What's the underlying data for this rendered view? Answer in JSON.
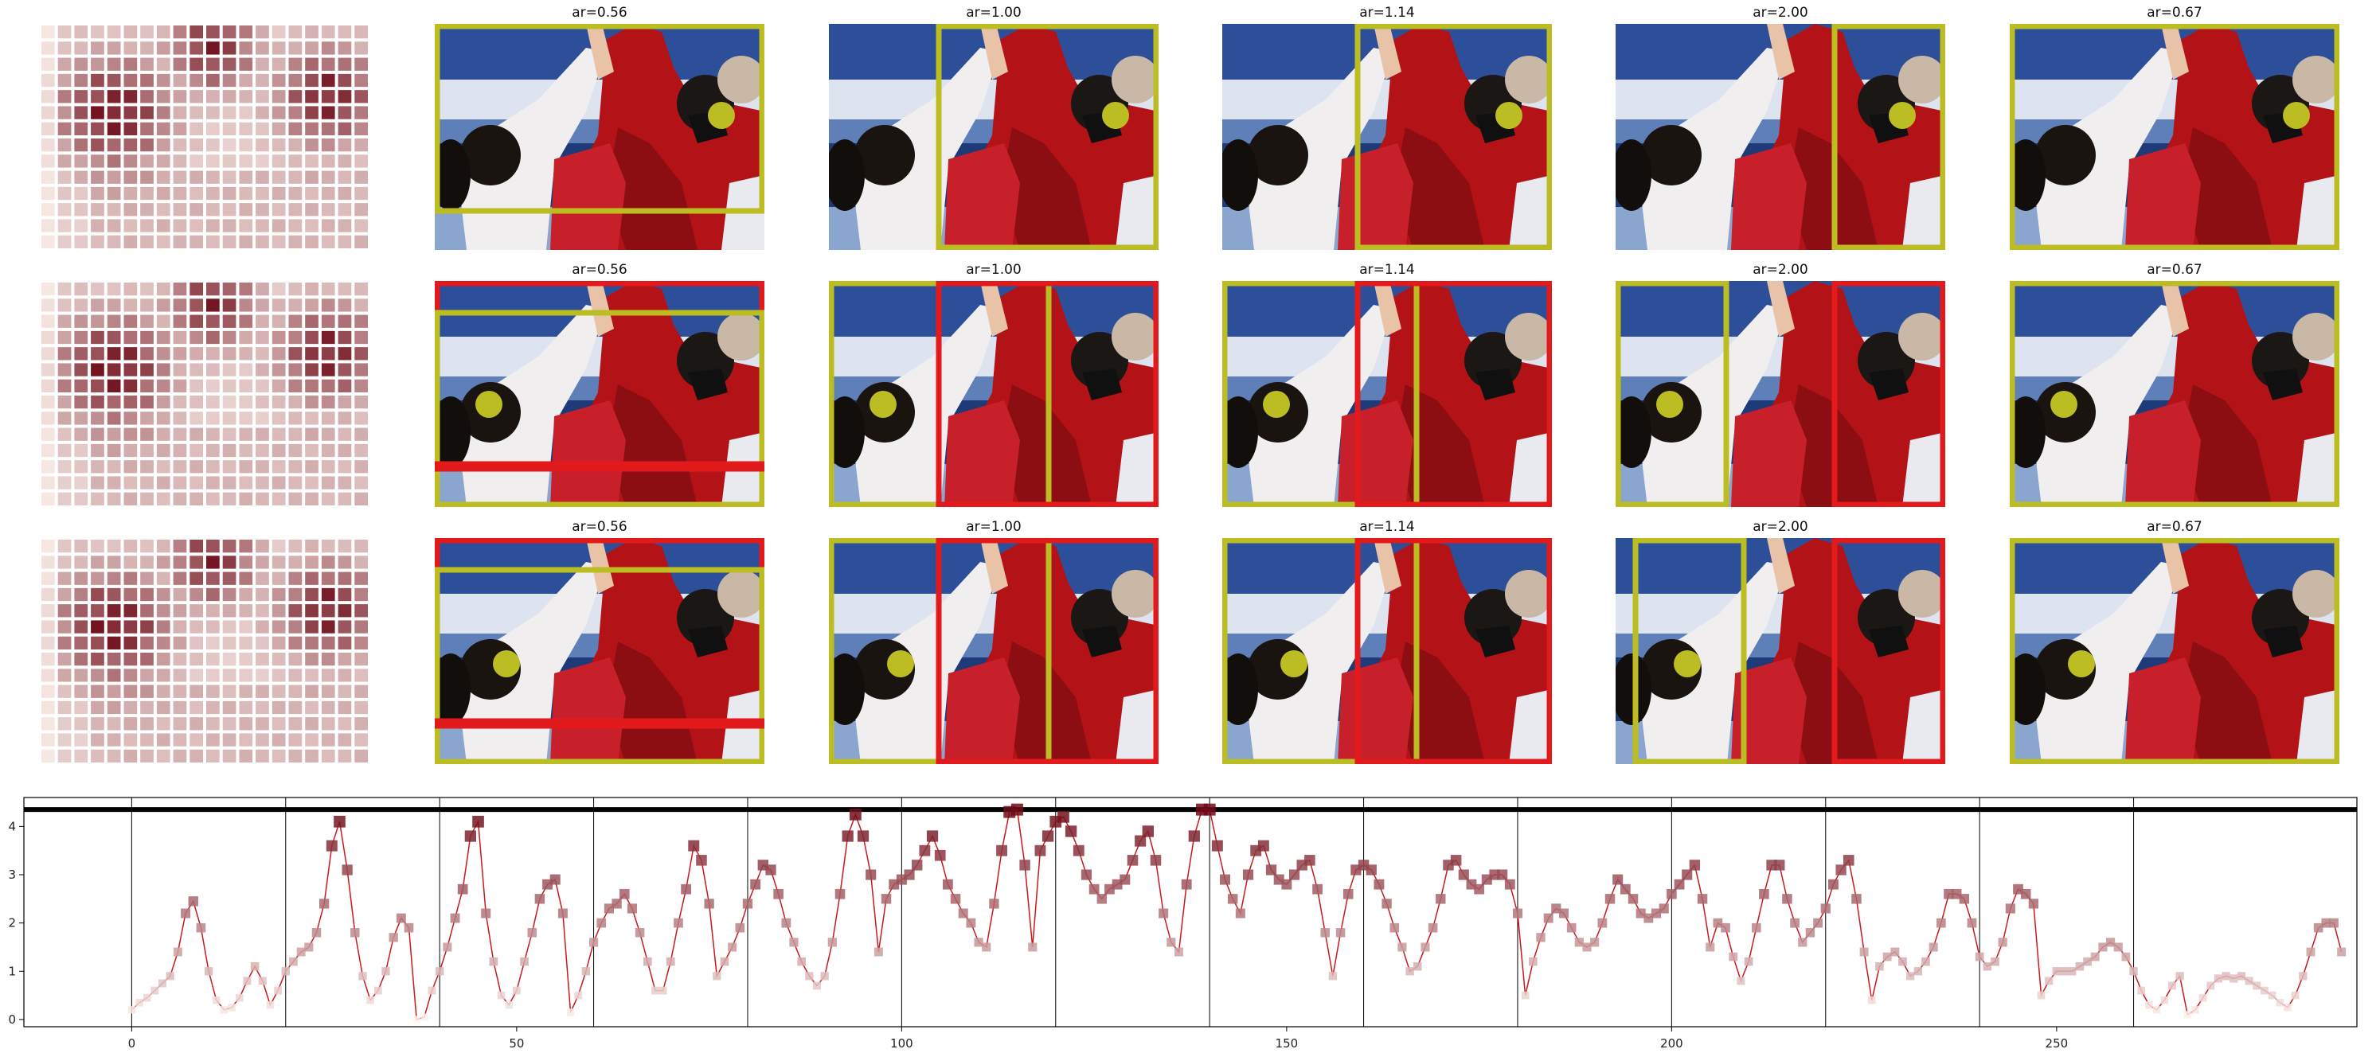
{
  "grid": {
    "rows": [
      {
        "panels": [
          {
            "title": "ar=0.56"
          },
          {
            "title": "ar=1.00"
          },
          {
            "title": "ar=1.14"
          },
          {
            "title": "ar=2.00"
          },
          {
            "title": "ar=0.67"
          }
        ]
      },
      {
        "panels": [
          {
            "title": "ar=0.56"
          },
          {
            "title": "ar=1.00"
          },
          {
            "title": "ar=1.14"
          },
          {
            "title": "ar=2.00"
          },
          {
            "title": "ar=0.67"
          }
        ]
      },
      {
        "panels": [
          {
            "title": "ar=0.56"
          },
          {
            "title": "ar=1.00"
          },
          {
            "title": "ar=1.14"
          },
          {
            "title": "ar=2.00"
          },
          {
            "title": "ar=0.67"
          }
        ]
      }
    ]
  },
  "colors": {
    "crop_box": "#bcbd22",
    "alt_box": "#e31a1c",
    "line": "#cb181d",
    "grid_line": "#000000"
  },
  "chart_data": {
    "type": "line",
    "title": "",
    "xlabel": "",
    "ylabel": "",
    "xlim": [
      -14,
      289
    ],
    "ylim": [
      -0.15,
      4.6
    ],
    "xticks": [
      0,
      50,
      100,
      150,
      200,
      250
    ],
    "yticks": [
      0,
      1,
      2,
      3,
      4
    ],
    "hline": 4.35,
    "vlines": [
      0,
      20,
      40,
      60,
      80,
      100,
      120,
      140,
      160,
      180,
      200,
      220,
      240,
      260
    ],
    "series": [
      {
        "values": [
          0.2,
          0.35,
          0.45,
          0.6,
          0.75,
          0.9,
          1.4,
          2.2,
          2.45,
          1.9,
          1.0,
          0.4,
          0.2,
          0.25,
          0.45,
          0.8,
          1.1,
          0.8,
          0.3,
          0.6,
          1.0,
          1.2,
          1.4,
          1.5,
          1.8,
          2.4,
          3.6,
          4.1,
          3.1,
          1.8,
          0.9,
          0.4,
          0.6,
          1.0,
          1.7,
          2.1,
          1.9,
          0.0,
          0.05,
          0.6,
          1.0,
          1.5,
          2.1,
          2.7,
          3.8,
          4.1,
          2.2,
          1.2,
          0.5,
          0.3,
          0.6,
          1.2,
          1.8,
          2.5,
          2.8,
          2.9,
          2.2,
          0.15,
          0.5,
          1.0,
          1.6,
          2.0,
          2.3,
          2.4,
          2.6,
          2.3,
          1.8,
          1.2,
          0.6,
          0.6,
          1.2,
          2.0,
          2.7,
          3.6,
          3.3,
          2.4,
          0.9,
          1.2,
          1.5,
          1.9,
          2.4,
          2.8,
          3.2,
          3.1,
          2.6,
          2.0,
          1.6,
          1.2,
          0.9,
          0.7,
          0.9,
          1.6,
          2.6,
          3.8,
          4.25,
          3.8,
          3.0,
          1.4,
          2.5,
          2.8,
          2.9,
          3.0,
          3.2,
          3.5,
          3.8,
          3.4,
          2.8,
          2.5,
          2.2,
          2.0,
          1.6,
          1.5,
          2.4,
          3.5,
          4.3,
          4.35,
          3.2,
          1.5,
          3.5,
          3.8,
          4.1,
          4.2,
          3.9,
          3.5,
          3.0,
          2.7,
          2.5,
          2.7,
          2.8,
          2.9,
          3.3,
          3.7,
          3.9,
          3.3,
          2.2,
          1.6,
          1.4,
          2.8,
          3.8,
          4.35,
          4.35,
          3.6,
          2.9,
          2.5,
          2.2,
          3.0,
          3.5,
          3.6,
          3.1,
          2.9,
          2.8,
          3.0,
          3.2,
          3.3,
          2.7,
          1.8,
          0.9,
          1.8,
          2.6,
          3.1,
          3.2,
          3.1,
          2.8,
          2.4,
          1.9,
          1.5,
          1.0,
          1.1,
          1.5,
          1.9,
          2.5,
          3.2,
          3.3,
          3.0,
          2.8,
          2.7,
          2.9,
          3.0,
          3.0,
          2.8,
          2.2,
          0.5,
          1.2,
          1.7,
          2.1,
          2.3,
          2.2,
          1.9,
          1.6,
          1.5,
          1.6,
          2.0,
          2.5,
          2.9,
          2.7,
          2.5,
          2.2,
          2.1,
          2.2,
          2.3,
          2.6,
          2.8,
          3.0,
          3.2,
          2.5,
          1.5,
          2.0,
          1.9,
          1.3,
          0.8,
          1.2,
          1.9,
          2.6,
          3.2,
          3.2,
          2.5,
          2.0,
          1.6,
          1.8,
          2.0,
          2.3,
          2.8,
          3.1,
          3.3,
          2.5,
          1.4,
          0.4,
          1.1,
          1.3,
          1.4,
          1.2,
          0.9,
          1.0,
          1.2,
          1.5,
          2.0,
          2.6,
          2.6,
          2.5,
          2.0,
          1.3,
          1.1,
          1.2,
          1.6,
          2.3,
          2.7,
          2.6,
          2.4,
          0.5,
          0.8,
          1.0,
          1.0,
          1.0,
          1.1,
          1.2,
          1.3,
          1.5,
          1.6,
          1.5,
          1.3,
          1.0,
          0.6,
          0.3,
          0.2,
          0.4,
          0.7,
          0.9,
          0.1,
          0.2,
          0.45,
          0.7,
          0.85,
          0.9,
          0.85,
          0.9,
          0.8,
          0.7,
          0.6,
          0.5,
          0.35,
          0.25,
          0.5,
          0.9,
          1.4,
          1.9,
          2.0,
          2.0,
          1.4
        ]
      }
    ]
  }
}
